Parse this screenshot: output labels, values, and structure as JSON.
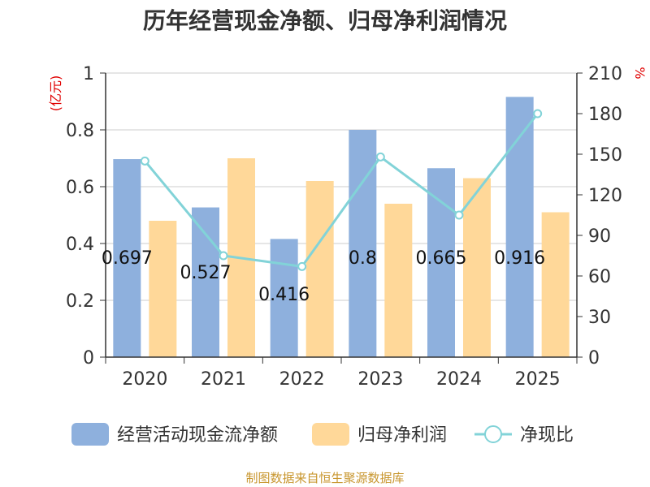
{
  "chart_data": {
    "type": "bar",
    "title": "历年经营现金净额、归母净利润情况",
    "categories": [
      "2020",
      "2021",
      "2022",
      "2023",
      "2024",
      "2025"
    ],
    "series": [
      {
        "name": "经营活动现金流净额",
        "type": "bar",
        "axis": "left",
        "color": "#8eb0dd",
        "values": [
          0.697,
          0.527,
          0.416,
          0.8,
          0.665,
          0.916
        ]
      },
      {
        "name": "归母净利润",
        "type": "bar",
        "axis": "left",
        "color": "#ffd899",
        "values": [
          0.48,
          0.7,
          0.62,
          0.54,
          0.63,
          0.51
        ]
      },
      {
        "name": "净现比",
        "type": "line",
        "axis": "right",
        "color": "#82d3d8",
        "values": [
          145,
          75,
          67,
          148,
          105,
          180
        ]
      }
    ],
    "data_labels": [
      "0.697",
      "0.527",
      "0.416",
      "0.8",
      "0.665",
      "0.916"
    ],
    "y_left": {
      "unit": "(亿元)",
      "ylim": [
        0,
        1
      ],
      "ticks": [
        "0",
        "0.2",
        "0.4",
        "0.6",
        "0.8",
        "1"
      ]
    },
    "y_right": {
      "unit": "%",
      "ylim": [
        0,
        210
      ],
      "ticks": [
        "0",
        "30",
        "60",
        "90",
        "120",
        "150",
        "180",
        "210"
      ]
    },
    "grid": true,
    "legend_position": "bottom"
  },
  "source": "制图数据来自恒生聚源数据库"
}
